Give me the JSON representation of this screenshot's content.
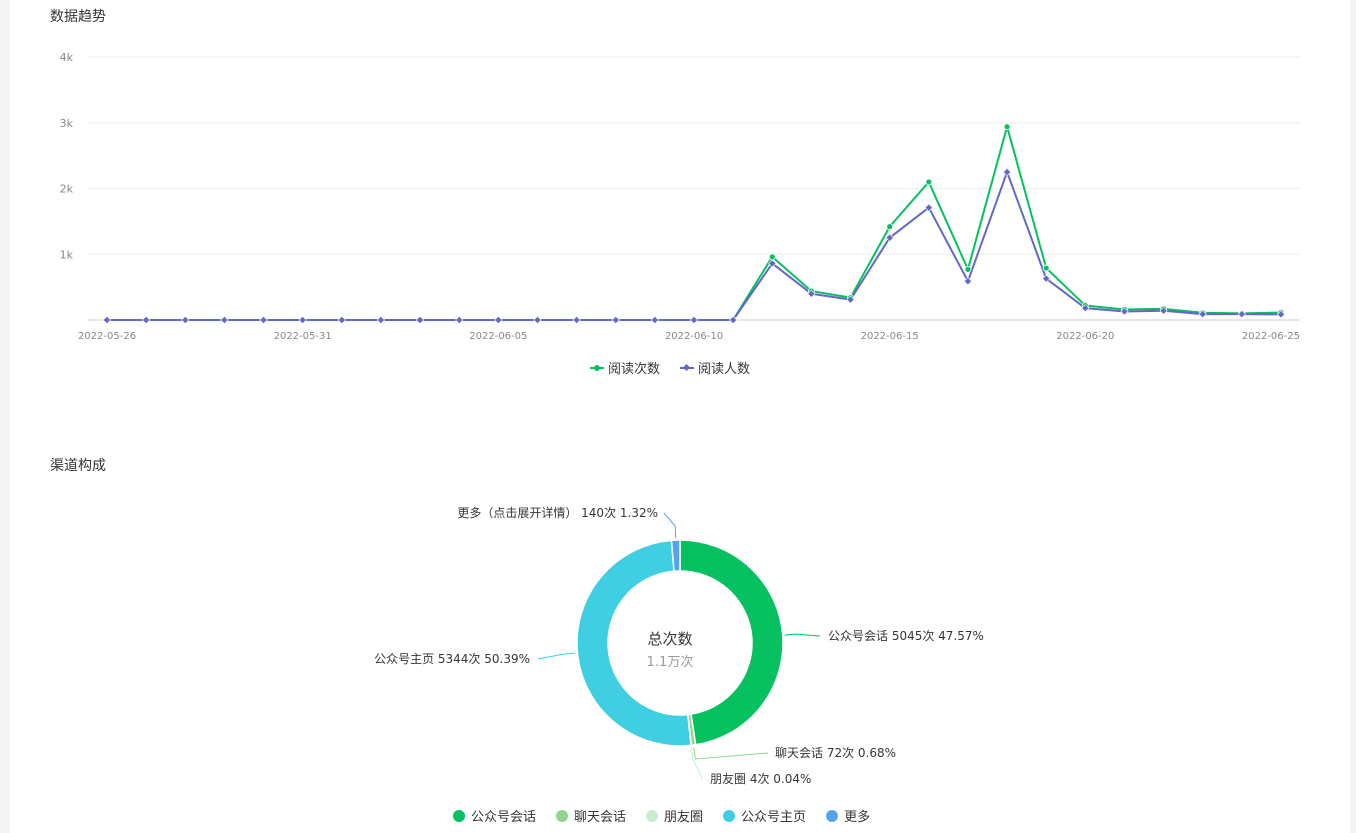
{
  "titles": {
    "trend": "数据趋势",
    "channel": "渠道构成"
  },
  "chart_data": [
    {
      "type": "line",
      "title": "",
      "xlabel": "",
      "ylabel": "",
      "x": [
        "2022-05-26",
        "2022-05-27",
        "2022-05-28",
        "2022-05-29",
        "2022-05-30",
        "2022-05-31",
        "2022-06-01",
        "2022-06-02",
        "2022-06-03",
        "2022-06-04",
        "2022-06-05",
        "2022-06-06",
        "2022-06-07",
        "2022-06-08",
        "2022-06-09",
        "2022-06-10",
        "2022-06-11",
        "2022-06-12",
        "2022-06-13",
        "2022-06-14",
        "2022-06-15",
        "2022-06-16",
        "2022-06-17",
        "2022-06-18",
        "2022-06-19",
        "2022-06-20",
        "2022-06-21",
        "2022-06-22",
        "2022-06-23",
        "2022-06-24",
        "2022-06-25"
      ],
      "x_tick_labels": [
        "2022-05-26",
        "2022-05-31",
        "2022-06-05",
        "2022-06-10",
        "2022-06-15",
        "2022-06-20",
        "2022-06-25"
      ],
      "y_tick_labels": [
        "1k",
        "2k",
        "3k",
        "4k"
      ],
      "ylim": [
        0,
        4000
      ],
      "grid": true,
      "legend_position": "bottom",
      "series": [
        {
          "name": "阅读次数",
          "color": "#07c160",
          "marker": "circle",
          "values": [
            0,
            0,
            0,
            0,
            0,
            0,
            0,
            0,
            0,
            0,
            0,
            0,
            0,
            0,
            0,
            0,
            0,
            960,
            440,
            340,
            1420,
            2100,
            770,
            2940,
            790,
            220,
            160,
            170,
            110,
            100,
            115
          ]
        },
        {
          "name": "阅读人数",
          "color": "#6467c8",
          "marker": "diamond",
          "values": [
            0,
            0,
            0,
            0,
            0,
            0,
            0,
            0,
            0,
            0,
            0,
            0,
            0,
            0,
            0,
            0,
            0,
            860,
            400,
            310,
            1250,
            1710,
            590,
            2250,
            630,
            180,
            130,
            140,
            90,
            90,
            85
          ]
        }
      ]
    },
    {
      "type": "pie",
      "title": "",
      "center_title": "总次数",
      "center_value": "1.1万次",
      "legend_position": "bottom",
      "slices": [
        {
          "name": "公众号会话",
          "label": "公众号会话 5045次 47.57%",
          "value": 5045,
          "color": "#07c160"
        },
        {
          "name": "聊天会话",
          "label": "聊天会话 72次 0.68%",
          "value": 72,
          "color": "#91d68f"
        },
        {
          "name": "朋友圈",
          "label": "朋友圈 4次 0.04%",
          "value": 4,
          "color": "#c8edce"
        },
        {
          "name": "公众号主页",
          "label": "公众号主页 5344次 50.39%",
          "value": 5344,
          "color": "#40cee3"
        },
        {
          "name": "更多",
          "label": "更多（点击展开详情） 140次 1.32%",
          "value": 140,
          "color": "#55a3ef"
        }
      ]
    }
  ]
}
